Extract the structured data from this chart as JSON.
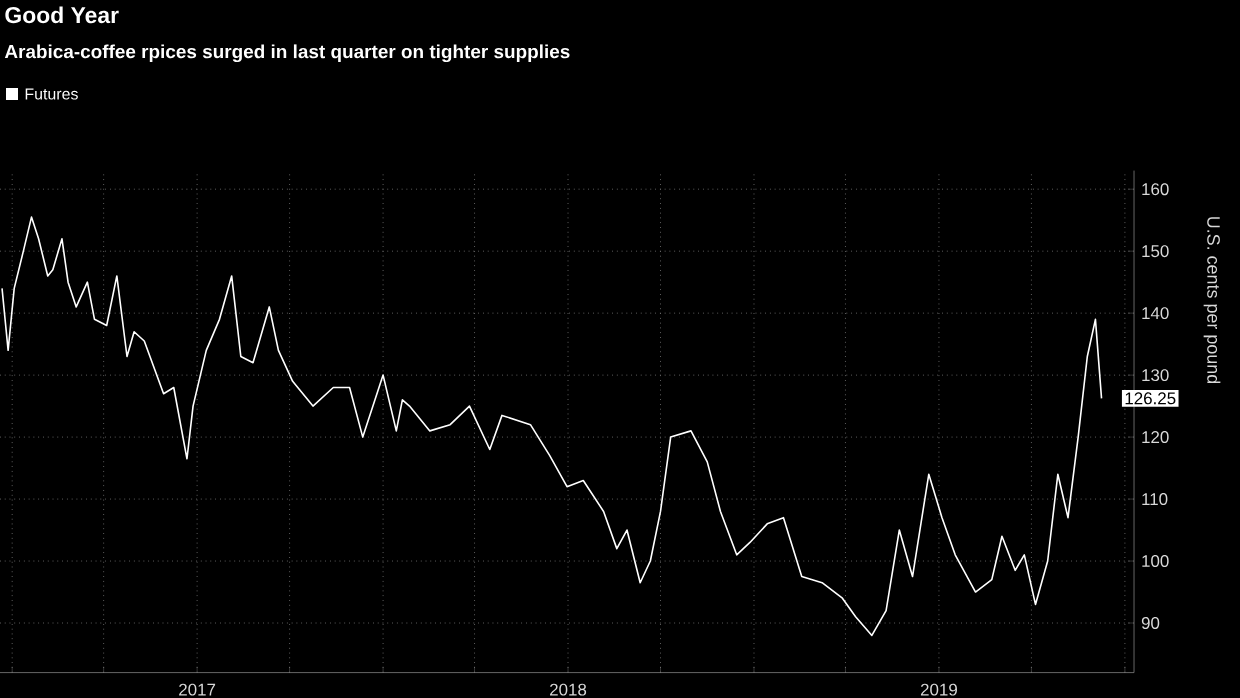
{
  "chart_data": {
    "type": "line",
    "title": "Good Year",
    "subtitle": "Arabica-coffee rpices surged in last quarter on tighter supplies",
    "ylabel": "U.S. cents per pound",
    "series": [
      {
        "name": "Futures",
        "color": "#ffffff",
        "x": [
          "2016-12-22",
          "2016-12-28",
          "2017-01-03",
          "2017-01-12",
          "2017-01-20",
          "2017-01-27",
          "2017-02-05",
          "2017-02-10",
          "2017-02-19",
          "2017-02-25",
          "2017-03-05",
          "2017-03-16",
          "2017-03-23",
          "2017-04-04",
          "2017-04-14",
          "2017-04-24",
          "2017-05-01",
          "2017-05-11",
          "2017-05-30",
          "2017-06-09",
          "2017-06-22",
          "2017-06-28",
          "2017-07-11",
          "2017-07-24",
          "2017-08-05",
          "2017-08-14",
          "2017-08-26",
          "2017-09-11",
          "2017-09-20",
          "2017-10-04",
          "2017-10-24",
          "2017-11-13",
          "2017-11-29",
          "2017-12-12",
          "2018-01-01",
          "2018-01-14",
          "2018-01-20",
          "2018-01-27",
          "2018-02-16",
          "2018-03-08",
          "2018-03-27",
          "2018-04-16",
          "2018-04-28",
          "2018-05-26",
          "2018-06-14",
          "2018-07-01",
          "2018-07-17",
          "2018-08-06",
          "2018-08-19",
          "2018-08-29",
          "2018-09-11",
          "2018-09-21",
          "2018-10-01",
          "2018-10-11",
          "2018-10-31",
          "2018-11-16",
          "2018-11-29",
          "2018-12-15",
          "2018-12-28",
          "2019-01-14",
          "2019-01-30",
          "2019-02-17",
          "2019-03-09",
          "2019-03-29",
          "2019-04-11",
          "2019-04-27",
          "2019-05-11",
          "2019-05-24",
          "2019-06-06",
          "2019-06-22",
          "2019-07-05",
          "2019-07-18",
          "2019-08-07",
          "2019-08-23",
          "2019-09-02",
          "2019-09-15",
          "2019-09-24",
          "2019-10-05",
          "2019-10-17",
          "2019-10-27",
          "2019-11-06",
          "2019-11-16",
          "2019-11-25",
          "2019-12-03",
          "2019-12-09"
        ],
        "values": [
          144,
          134,
          144,
          150,
          155.5,
          152,
          146,
          147,
          152,
          145,
          141,
          145,
          139,
          138,
          146,
          133,
          137,
          135.5,
          127,
          128,
          116.5,
          125,
          134,
          139,
          146,
          133,
          132,
          141,
          134,
          129,
          125,
          128,
          128,
          120,
          130,
          121,
          126,
          125,
          121,
          122,
          125,
          118,
          123.5,
          122,
          117,
          112,
          113,
          108,
          102,
          105,
          96.5,
          100,
          108,
          120,
          121,
          116,
          108,
          101,
          103,
          106,
          107,
          97.5,
          96.5,
          94,
          91,
          88,
          92,
          105,
          97.5,
          114,
          107,
          101,
          95,
          97,
          104,
          98.5,
          101,
          93,
          100,
          114,
          107,
          120,
          133,
          139,
          126.25
        ]
      }
    ],
    "xlim": [
      "2016-12-20",
      "2020-01-10"
    ],
    "xticks": [
      {
        "value": "2017-01-01",
        "label": null
      },
      {
        "value": "2017-04-01",
        "label": null
      },
      {
        "value": "2017-07-02",
        "label": "2017"
      },
      {
        "value": "2017-10-01",
        "label": null
      },
      {
        "value": "2018-01-01",
        "label": null
      },
      {
        "value": "2018-04-01",
        "label": null
      },
      {
        "value": "2018-07-02",
        "label": "2018"
      },
      {
        "value": "2018-10-01",
        "label": null
      },
      {
        "value": "2019-01-01",
        "label": null
      },
      {
        "value": "2019-04-01",
        "label": null
      },
      {
        "value": "2019-07-02",
        "label": "2019"
      },
      {
        "value": "2019-10-01",
        "label": null
      },
      {
        "value": "2020-01-01",
        "label": null
      }
    ],
    "ylim": [
      82,
      163
    ],
    "yticks": [
      90,
      100,
      110,
      120,
      130,
      140,
      150,
      160
    ],
    "grid": true,
    "legend": "top left",
    "annotations": [
      {
        "text": "126.25",
        "x": "2019-12-09",
        "y": 126.25
      }
    ]
  }
}
